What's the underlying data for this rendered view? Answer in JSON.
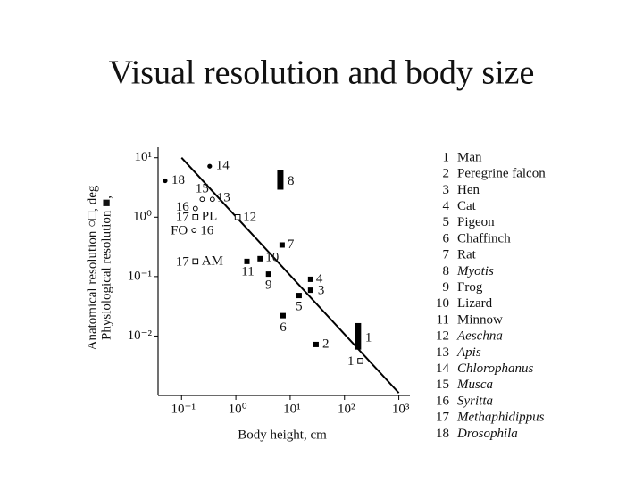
{
  "chart_data": {
    "type": "scatter",
    "title": "Visual resolution and body size",
    "x_label": "Body height, cm",
    "y_label": [
      "Anatomical resolution ○□, deg",
      "Physiological resolution ■,"
    ],
    "log_x": true,
    "log_y": true,
    "xlim": [
      0.037,
      1600
    ],
    "ylim": [
      0.001,
      15
    ],
    "xticks": [
      {
        "value": 0.1,
        "label": "10⁻¹"
      },
      {
        "value": 1,
        "label": "10⁰"
      },
      {
        "value": 10,
        "label": "10¹"
      },
      {
        "value": 100,
        "label": "10²"
      },
      {
        "value": 1000,
        "label": "10³"
      }
    ],
    "yticks": [
      {
        "value": 0.01,
        "label": "10⁻²"
      },
      {
        "value": 0.1,
        "label": "10⁻¹"
      },
      {
        "value": 1,
        "label": "10⁰"
      },
      {
        "value": 10,
        "label": "10¹"
      }
    ],
    "color": "#000000",
    "fit": {
      "x": [
        0.1,
        1000
      ],
      "y": [
        10,
        0.0011
      ]
    },
    "points": [
      {
        "label": "18",
        "x": 0.05,
        "y": 4.1,
        "marker": "filled-circle"
      },
      {
        "label": "14",
        "x": 0.33,
        "y": 7.2,
        "marker": "filled-circle"
      },
      {
        "label": "15",
        "x": 0.24,
        "y": 2.0,
        "marker": "open-circle"
      },
      {
        "label": "13",
        "x": 0.37,
        "y": 2.0,
        "marker": "open-circle"
      },
      {
        "label": "16",
        "x": 0.18,
        "y": 1.4,
        "marker": "open-circle"
      },
      {
        "label_left": "17",
        "label": "PL",
        "x": 0.18,
        "y": 1.0,
        "marker": "open-square"
      },
      {
        "label_left": "FO",
        "label": "16",
        "x": 0.17,
        "y": 0.6,
        "marker": "open-circle"
      },
      {
        "label_left": "17",
        "label": "AM",
        "x": 0.18,
        "y": 0.18,
        "marker": "open-square"
      },
      {
        "label": "12",
        "x": 1.08,
        "y": 1.0,
        "marker": "open-square"
      },
      {
        "label": "11",
        "x": 1.6,
        "y": 0.18,
        "marker": "filled-square"
      },
      {
        "label": "10",
        "x": 2.8,
        "y": 0.2,
        "marker": "filled-square"
      },
      {
        "label": "9",
        "x": 4.0,
        "y": 0.11,
        "marker": "filled-square"
      },
      {
        "label": "7",
        "x": 7.1,
        "y": 0.34,
        "marker": "filled-square"
      },
      {
        "label": "4",
        "x": 23.8,
        "y": 0.09,
        "marker": "filled-square"
      },
      {
        "label": "3",
        "x": 23.8,
        "y": 0.059,
        "marker": "filled-square"
      },
      {
        "label": "5",
        "x": 14.6,
        "y": 0.048,
        "marker": "filled-square"
      },
      {
        "label": "6",
        "x": 7.4,
        "y": 0.022,
        "marker": "filled-square"
      },
      {
        "label": "2",
        "x": 30,
        "y": 0.0072,
        "marker": "filled-square"
      },
      {
        "label": "1",
        "x": 196,
        "y": 0.0038,
        "marker": "open-square"
      }
    ],
    "bars": [
      {
        "label": "8",
        "x": 6.6,
        "ylow": 2.9,
        "yhigh": 6.2
      },
      {
        "label": "1",
        "x": 177,
        "ylow": 0.0059,
        "yhigh": 0.0165
      }
    ],
    "legend": [
      {
        "number": "1",
        "name": "Man",
        "italic": false
      },
      {
        "number": "2",
        "name": "Peregrine falcon",
        "italic": false
      },
      {
        "number": "3",
        "name": "Hen",
        "italic": false
      },
      {
        "number": "4",
        "name": "Cat",
        "italic": false
      },
      {
        "number": "5",
        "name": "Pigeon",
        "italic": false
      },
      {
        "number": "6",
        "name": "Chaffinch",
        "italic": false
      },
      {
        "number": "7",
        "name": "Rat",
        "italic": false
      },
      {
        "number": "8",
        "name": "Myotis",
        "italic": true
      },
      {
        "number": "9",
        "name": "Frog",
        "italic": false
      },
      {
        "number": "10",
        "name": "Lizard",
        "italic": false
      },
      {
        "number": "11",
        "name": "Minnow",
        "italic": false
      },
      {
        "number": "12",
        "name": "Aeschna",
        "italic": true
      },
      {
        "number": "13",
        "name": "Apis",
        "italic": true
      },
      {
        "number": "14",
        "name": "Chlorophanus",
        "italic": true
      },
      {
        "number": "15",
        "name": "Musca",
        "italic": true
      },
      {
        "number": "16",
        "name": "Syritta",
        "italic": true
      },
      {
        "number": "17",
        "name": "Methaphidippus",
        "italic": true
      },
      {
        "number": "18",
        "name": "Drosophila",
        "italic": true
      }
    ]
  }
}
